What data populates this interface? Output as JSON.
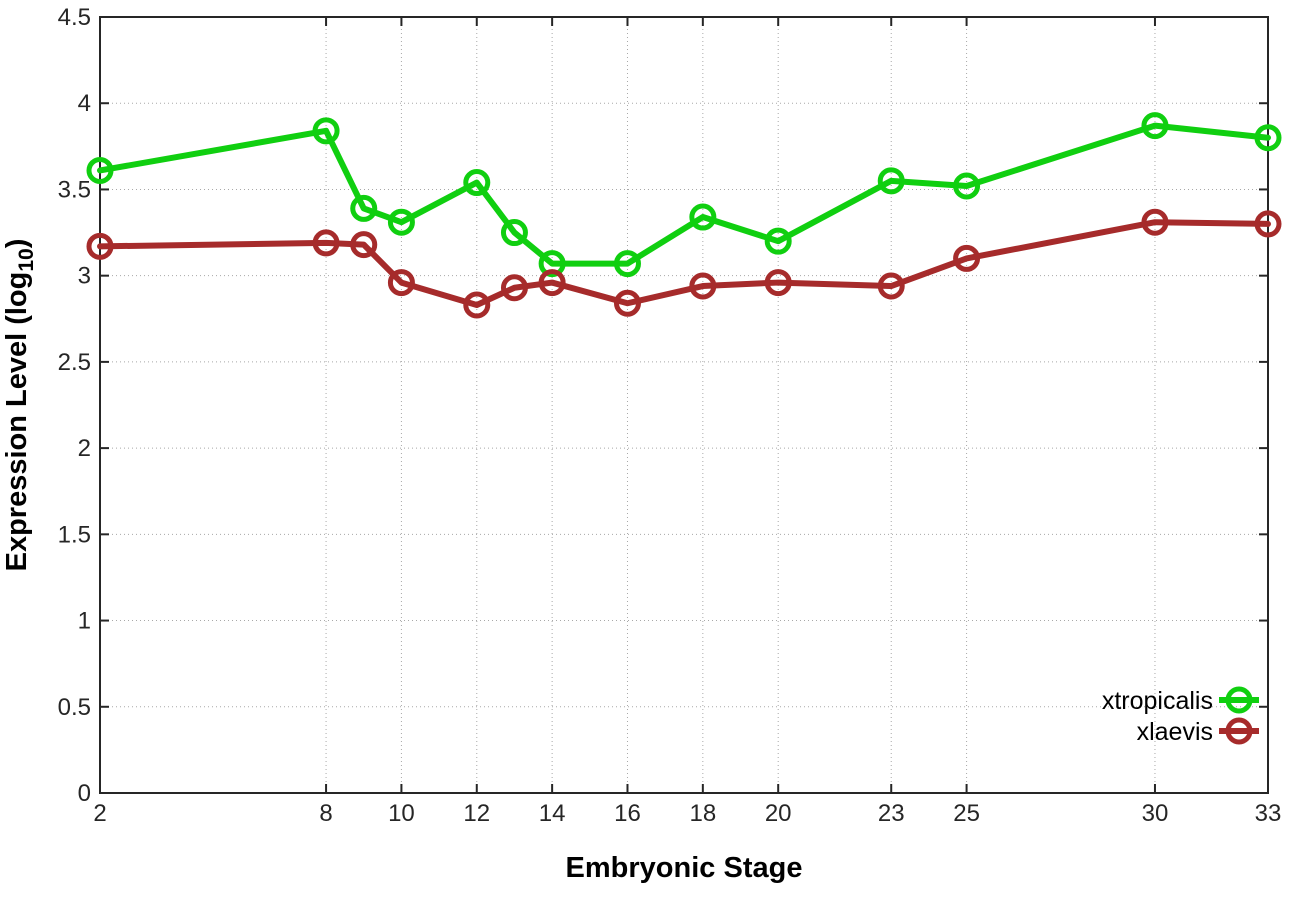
{
  "chart_data": {
    "type": "line",
    "title": "",
    "xlabel": "Embryonic Stage",
    "ylabel": {
      "text": "Expression Level (log",
      "sub": "10",
      "suffix": ")"
    },
    "x": [
      2,
      8,
      9,
      10,
      12,
      13,
      14,
      16,
      18,
      20,
      23,
      25,
      30,
      33
    ],
    "series": [
      {
        "name": "xtropicalis",
        "color": "#10cf10",
        "values": [
          3.61,
          3.84,
          3.39,
          3.31,
          3.54,
          3.25,
          3.07,
          3.07,
          3.34,
          3.2,
          3.55,
          3.52,
          3.87,
          3.8
        ]
      },
      {
        "name": "xlaevis",
        "color": "#a62b2b",
        "values": [
          3.17,
          3.19,
          3.18,
          2.96,
          2.83,
          2.93,
          2.96,
          2.84,
          2.94,
          2.96,
          2.94,
          3.1,
          3.31,
          3.3
        ]
      }
    ],
    "xlim": [
      2,
      33
    ],
    "ylim": [
      0,
      4.5
    ],
    "xticks": [
      2,
      8,
      10,
      12,
      14,
      16,
      18,
      20,
      23,
      25,
      30,
      33
    ],
    "yticks": [
      0,
      0.5,
      1,
      1.5,
      2,
      2.5,
      3,
      3.5,
      4,
      4.5
    ],
    "grid": true,
    "legend_position": "bottom-right",
    "marker": "open-circle"
  },
  "style_colors": {
    "axis": "#262626",
    "grid": "#a8a8a8",
    "background": "#ffffff"
  }
}
